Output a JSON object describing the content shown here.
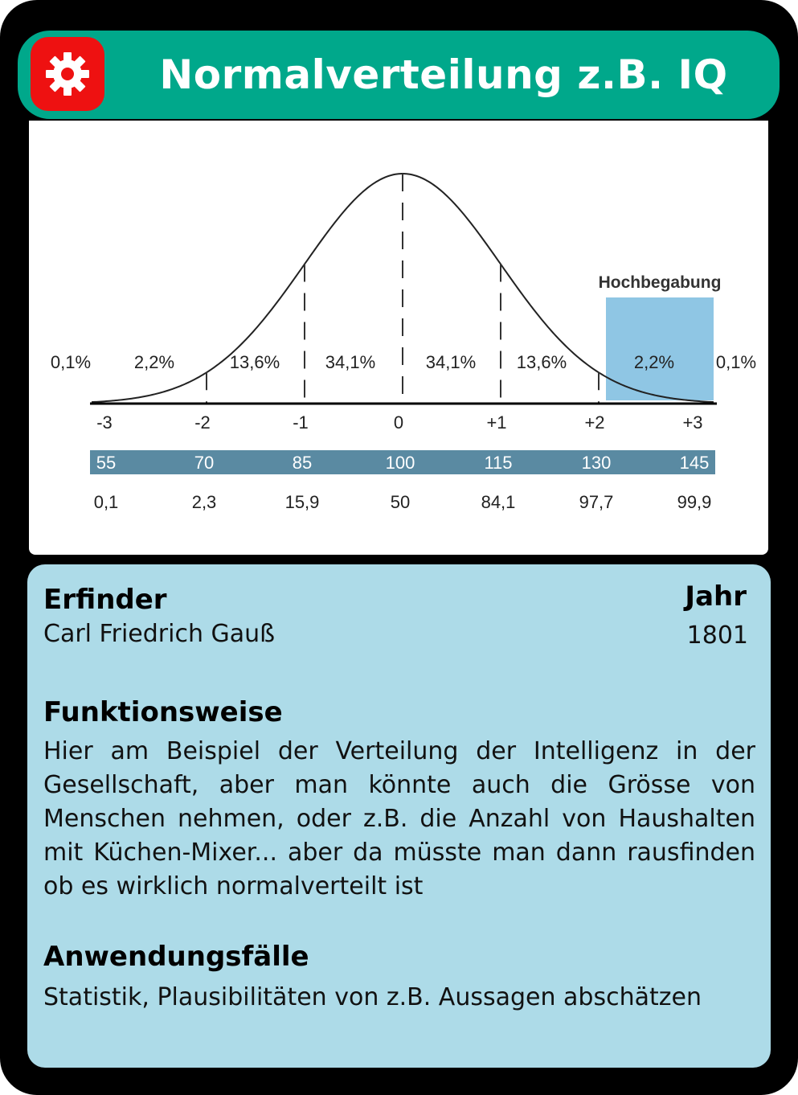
{
  "card": {
    "title": "Normalverteilung z.B. IQ",
    "icon": "gear-icon",
    "colors": {
      "header": "#00a88b",
      "icon_bg": "#ee1111",
      "info_bg": "#addbe8",
      "band": "#5a8aa2",
      "highlight": "#8fc6e4"
    }
  },
  "chart_data": {
    "type": "line",
    "curve": "normal distribution",
    "sigma_labels": [
      "-3",
      "-2",
      "-1",
      "0",
      "+1",
      "+2",
      "+3"
    ],
    "percentages": [
      "0,1%",
      "2,2%",
      "13,6%",
      "34,1%",
      "34,1%",
      "13,6%",
      "2,2%",
      "0,1%"
    ],
    "iq_values": [
      "55",
      "70",
      "85",
      "100",
      "115",
      "130",
      "145"
    ],
    "percentiles": [
      "0,1",
      "2,3",
      "15,9",
      "50",
      "84,1",
      "97,7",
      "99,9"
    ],
    "highlight_label": "Hochbegabung"
  },
  "info": {
    "inventor_heading": "Erfinder",
    "inventor": "Carl Friedrich Gauß",
    "year_heading": "Jahr",
    "year": "1801",
    "function_heading": "Funktionsweise",
    "function_text": "Hier am Beispiel der Verteilung der Intelligenz in der Gesellschaft, aber man könnte auch die Grösse von Menschen nehmen, oder z.B. die Anzahl von Haushalten mit Küchen-Mixer... aber da müsste man dann rausfinden ob es wirklich normalverteilt ist",
    "usage_heading": "Anwendungsfälle",
    "usage_text": "Statistik, Plausibilitäten von z.B. Aussagen abschätzen"
  }
}
